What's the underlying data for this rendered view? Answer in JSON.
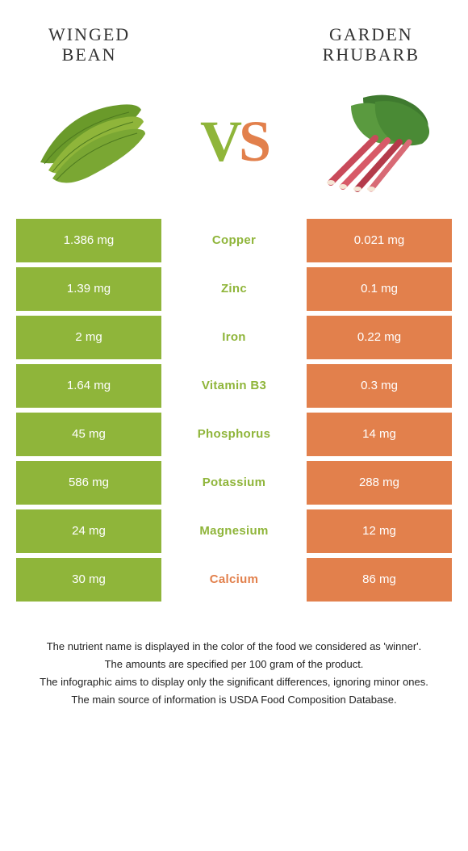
{
  "left_food": {
    "name": "Winged\nBean",
    "color": "#8fb53a"
  },
  "right_food": {
    "name": "Garden\nRhubarb",
    "color": "#e2804c"
  },
  "vs": {
    "v": "V",
    "s": "S"
  },
  "nutrients": [
    {
      "name": "Copper",
      "left": "1.386 mg",
      "right": "0.021 mg",
      "winner": "left"
    },
    {
      "name": "Zinc",
      "left": "1.39 mg",
      "right": "0.1 mg",
      "winner": "left"
    },
    {
      "name": "Iron",
      "left": "2 mg",
      "right": "0.22 mg",
      "winner": "left"
    },
    {
      "name": "Vitamin B3",
      "left": "1.64 mg",
      "right": "0.3 mg",
      "winner": "left"
    },
    {
      "name": "Phosphorus",
      "left": "45 mg",
      "right": "14 mg",
      "winner": "left"
    },
    {
      "name": "Potassium",
      "left": "586 mg",
      "right": "288 mg",
      "winner": "left"
    },
    {
      "name": "Magnesium",
      "left": "24 mg",
      "right": "12 mg",
      "winner": "left"
    },
    {
      "name": "Calcium",
      "left": "30 mg",
      "right": "86 mg",
      "winner": "right"
    }
  ],
  "footer": [
    "The nutrient name is displayed in the color of the food we considered as 'winner'.",
    "The amounts are specified per 100 gram of the product.",
    "The infographic aims to display only the significant differences, ignoring minor ones.",
    "The main source of information is USDA Food Composition Database."
  ]
}
